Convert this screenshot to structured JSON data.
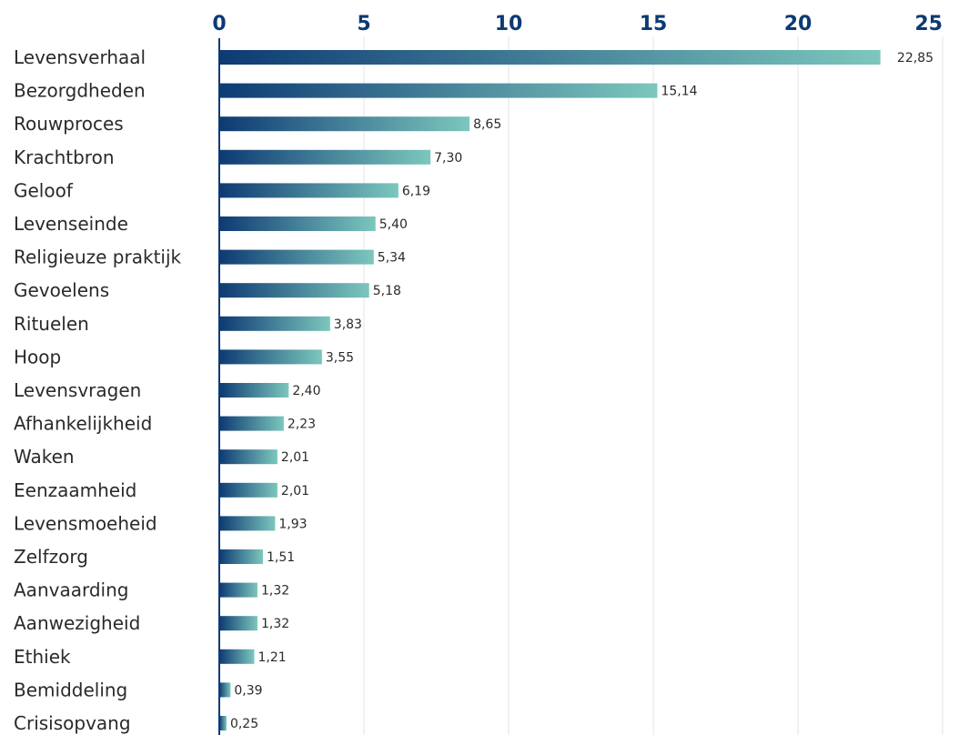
{
  "chart_data": {
    "type": "bar",
    "orientation": "horizontal",
    "title": "",
    "xlabel": "",
    "ylabel": "",
    "xlim": [
      0,
      25
    ],
    "ticks": [
      0,
      5,
      10,
      15,
      20,
      25
    ],
    "tick_labels": [
      "0",
      "5",
      "10",
      "15",
      "20",
      "25"
    ],
    "grid": true,
    "axis_position": "top",
    "categories": [
      "Levensverhaal",
      "Bezorgdheden",
      "Rouwproces",
      "Krachtbron",
      "Geloof",
      "Levenseinde",
      "Religieuze praktijk",
      "Gevoelens",
      "Rituelen",
      "Hoop",
      "Levensvragen",
      "Afhankelijkheid",
      "Waken",
      "Eenzaamheid",
      "Levensmoeheid",
      "Zelfzorg",
      "Aanvaarding",
      "Aanwezigheid",
      "Ethiek",
      "Bemiddeling",
      "Crisisopvang"
    ],
    "values": [
      22.85,
      15.14,
      8.65,
      7.3,
      6.19,
      5.4,
      5.34,
      5.18,
      3.83,
      3.55,
      2.4,
      2.23,
      2.01,
      2.01,
      1.93,
      1.51,
      1.32,
      1.32,
      1.21,
      0.39,
      0.25
    ],
    "value_labels": [
      "22,85",
      "15,14",
      "8,65",
      "7,30",
      "6,19",
      "5,40",
      "5,34",
      "5,18",
      "3,83",
      "3,55",
      "2,40",
      "2,23",
      "2,01",
      "2,01",
      "1,93",
      "1,51",
      "1,32",
      "1,32",
      "1,21",
      "0,39",
      "0,25"
    ],
    "colors": {
      "bar_gradient_start": "#0d3a73",
      "bar_gradient_end": "#7cc7bd",
      "axis": "#0d3a73",
      "tick_text": "#0d3a73",
      "grid": "#e4e4e4",
      "label_text": "#2a2a2a"
    }
  }
}
